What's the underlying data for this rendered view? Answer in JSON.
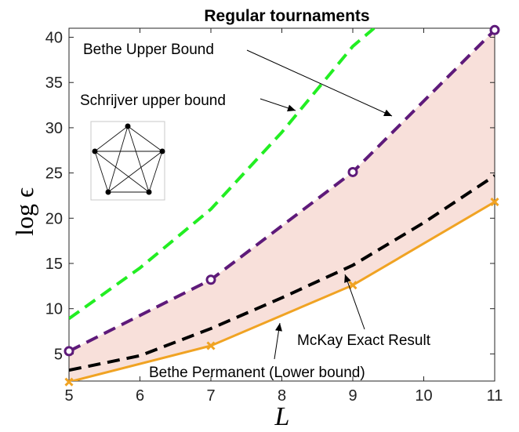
{
  "chart_data": {
    "type": "line",
    "title": "Regular tournaments",
    "xlabel": "L",
    "ylabel": "log ϵ",
    "xlim": [
      5,
      11
    ],
    "ylim": [
      2,
      41
    ],
    "xticks": [
      5,
      6,
      7,
      8,
      9,
      10,
      11
    ],
    "yticks": [
      5,
      10,
      15,
      20,
      25,
      30,
      35,
      40
    ],
    "grid": false,
    "shaded_region": {
      "between": [
        "Bethe Upper Bound",
        "Bethe Permanent (Lower bound)"
      ],
      "color": "#f8e0da"
    },
    "series": [
      {
        "name": "Schrijver upper bound",
        "color": "#22ee22",
        "style": "dashed",
        "marker": "none",
        "x": [
          5,
          6,
          7,
          8,
          9,
          9.3
        ],
        "y": [
          8.9,
          14.5,
          21.0,
          29.5,
          39.0,
          41.0
        ]
      },
      {
        "name": "Bethe Upper Bound",
        "color": "#5e1a7a",
        "style": "dashed",
        "marker": "circle",
        "x": [
          5,
          7,
          9,
          11
        ],
        "y": [
          5.3,
          13.2,
          25.1,
          40.8
        ],
        "marker_x": [
          5,
          7,
          9,
          11
        ]
      },
      {
        "name": "McKay Exact Result",
        "color": "#000000",
        "style": "dashed",
        "marker": "none",
        "x": [
          5,
          6,
          7,
          8,
          9,
          10,
          11
        ],
        "y": [
          3.2,
          4.8,
          7.8,
          11.2,
          14.8,
          19.5,
          24.7
        ]
      },
      {
        "name": "Bethe Permanent (Lower bound)",
        "color": "#f0a323",
        "style": "solid",
        "marker": "x",
        "x": [
          5,
          7,
          9,
          11
        ],
        "y": [
          1.9,
          5.9,
          12.6,
          21.8
        ]
      }
    ],
    "annotations": [
      {
        "text": "Bethe Upper Bound"
      },
      {
        "text": "Schrijver upper bound"
      },
      {
        "text": "McKay Exact Result"
      },
      {
        "text": "Bethe Permanent (Lower bound)"
      }
    ]
  }
}
